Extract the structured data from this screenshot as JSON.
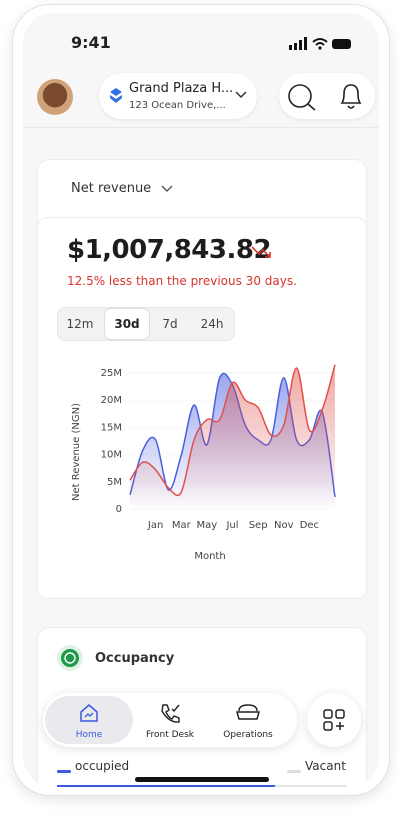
{
  "status": {
    "time": "9:41"
  },
  "header": {
    "hotel_name": "Grand Plaza H...",
    "address": "123 Ocean Drive,..."
  },
  "revenue": {
    "title": "Net revenue",
    "amount": "$1,007,843.82",
    "comparison": "12.5% less than the previous 30 days.",
    "tabs": [
      "12m",
      "30d",
      "7d",
      "24h"
    ]
  },
  "chart_data": {
    "type": "line",
    "y_label": "Net Revenue (NGN)",
    "x_label": "Month",
    "categories": [
      null,
      null,
      "Jan",
      null,
      "Mar",
      null,
      "May",
      null,
      "Jul",
      null,
      "Sep",
      null,
      "Nov",
      null,
      "Dec",
      null,
      null
    ],
    "series": [
      {
        "color": "#4a5fe0",
        "values": [
          2600000,
          10800000,
          12700000,
          3500000,
          9900000,
          19100000,
          11800000,
          24100000,
          22800000,
          15400000,
          12700000,
          12700000,
          24100000,
          12700000,
          12700000,
          17800000,
          2200000
        ]
      },
      {
        "color": "#e0504a",
        "values": [
          5300000,
          8600000,
          7200000,
          3900000,
          3100000,
          12700000,
          16400000,
          16400000,
          23200000,
          20000000,
          18600000,
          13600000,
          15400000,
          25900000,
          14500000,
          18200000,
          26500000
        ]
      }
    ],
    "ylim": [
      0,
      27000000
    ],
    "yticks": [
      {
        "value": 0,
        "label": "0"
      },
      {
        "value": 5000000,
        "label": "5M"
      },
      {
        "value": 10000000,
        "label": "10M"
      },
      {
        "value": 15000000,
        "label": "15M"
      },
      {
        "value": 20000000,
        "label": "20M"
      },
      {
        "value": 25000000,
        "label": "25M"
      }
    ],
    "grid": true
  },
  "occupancy": {
    "title": "Occupancy",
    "legend": [
      "occupied",
      "Vacant"
    ]
  },
  "nav": {
    "items": [
      "Home",
      "Front Desk",
      "Operations"
    ]
  }
}
